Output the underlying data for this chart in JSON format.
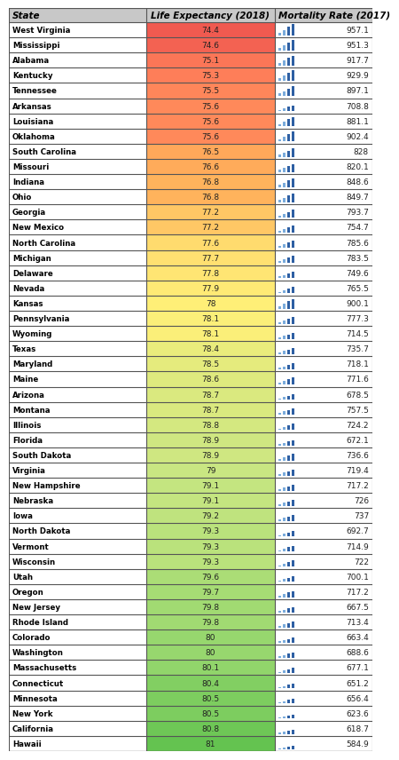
{
  "headers": [
    "State",
    "Life Expectancy (2018)",
    "Mortality Rate (2017)"
  ],
  "rows": [
    [
      "West Virginia",
      74.4,
      957.1
    ],
    [
      "Mississippi",
      74.6,
      951.3
    ],
    [
      "Alabama",
      75.1,
      917.7
    ],
    [
      "Kentucky",
      75.3,
      929.9
    ],
    [
      "Tennessee",
      75.5,
      897.1
    ],
    [
      "Arkansas",
      75.6,
      708.8
    ],
    [
      "Louisiana",
      75.6,
      881.1
    ],
    [
      "Oklahoma",
      75.6,
      902.4
    ],
    [
      "South Carolina",
      76.5,
      828.0
    ],
    [
      "Missouri",
      76.6,
      820.1
    ],
    [
      "Indiana",
      76.8,
      848.6
    ],
    [
      "Ohio",
      76.8,
      849.7
    ],
    [
      "Georgia",
      77.2,
      793.7
    ],
    [
      "New Mexico",
      77.2,
      754.7
    ],
    [
      "North Carolina",
      77.6,
      785.6
    ],
    [
      "Michigan",
      77.7,
      783.5
    ],
    [
      "Delaware",
      77.8,
      749.6
    ],
    [
      "Nevada",
      77.9,
      765.5
    ],
    [
      "Kansas",
      78.0,
      900.1
    ],
    [
      "Pennsylvania",
      78.1,
      777.3
    ],
    [
      "Wyoming",
      78.1,
      714.5
    ],
    [
      "Texas",
      78.4,
      735.7
    ],
    [
      "Maryland",
      78.5,
      718.1
    ],
    [
      "Maine",
      78.6,
      771.6
    ],
    [
      "Arizona",
      78.7,
      678.5
    ],
    [
      "Montana",
      78.7,
      757.5
    ],
    [
      "Illinois",
      78.8,
      724.2
    ],
    [
      "Florida",
      78.9,
      672.1
    ],
    [
      "South Dakota",
      78.9,
      736.6
    ],
    [
      "Virginia",
      79.0,
      719.4
    ],
    [
      "New Hampshire",
      79.1,
      717.2
    ],
    [
      "Nebraska",
      79.1,
      726.0
    ],
    [
      "Iowa",
      79.2,
      737.0
    ],
    [
      "North Dakota",
      79.3,
      692.7
    ],
    [
      "Vermont",
      79.3,
      714.9
    ],
    [
      "Wisconsin",
      79.3,
      722.0
    ],
    [
      "Utah",
      79.6,
      700.1
    ],
    [
      "Oregon",
      79.7,
      717.2
    ],
    [
      "New Jersey",
      79.8,
      667.5
    ],
    [
      "Rhode Island",
      79.8,
      713.4
    ],
    [
      "Colorado",
      80.0,
      663.4
    ],
    [
      "Washington",
      80.0,
      688.6
    ],
    [
      "Massachusetts",
      80.1,
      677.1
    ],
    [
      "Connecticut",
      80.4,
      651.2
    ],
    [
      "Minnesota",
      80.5,
      656.4
    ],
    [
      "New York",
      80.5,
      623.6
    ],
    [
      "California",
      80.8,
      618.7
    ],
    [
      "Hawaii",
      81.0,
      584.9
    ]
  ],
  "header_bg": "#c8c8c8",
  "border_color": "#555555",
  "bar_color_dark": "#2e5fa3",
  "bar_color_light": "#7aabdb",
  "mr_min": 584.9,
  "mr_max": 957.1,
  "le_min": 74.4,
  "le_max": 81.0
}
